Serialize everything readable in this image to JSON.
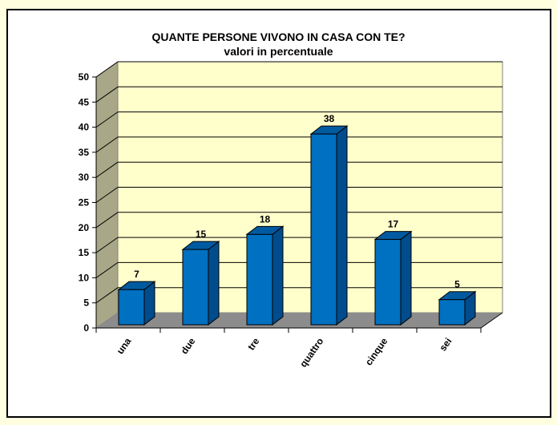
{
  "title": "QUANTE PERSONE VIVONO IN CASA CON TE?",
  "subtitle": "valori in percentuale",
  "colors": {
    "page_background": "#FFFFE0",
    "panel_background": "#FFFFFF",
    "back_wall": "#FFFFCC",
    "side_wall": "#A8A888",
    "floor": "#8C8C8C",
    "bar_front": "#0070C0",
    "bar_side": "#004C8C",
    "bar_top": "#005AA0"
  },
  "chart_data": {
    "type": "bar",
    "style": "3d-column",
    "title": "QUANTE PERSONE VIVONO IN CASA CON TE?",
    "subtitle": "valori in percentuale",
    "xlabel": "",
    "ylabel": "",
    "categories": [
      "una",
      "due",
      "tre",
      "quattro",
      "cinque",
      "sei"
    ],
    "values": [
      7,
      15,
      18,
      38,
      17,
      5
    ],
    "data_labels": [
      "7",
      "15",
      "18",
      "38",
      "17",
      "5"
    ],
    "ylim": [
      0,
      50
    ],
    "yticks": [
      0,
      5,
      10,
      15,
      20,
      25,
      30,
      35,
      40,
      45,
      50
    ],
    "grid": true,
    "legend": "none"
  },
  "axis": {
    "ytick_labels": [
      "0",
      "5",
      "10",
      "15",
      "20",
      "25",
      "30",
      "35",
      "40",
      "45",
      "50"
    ]
  }
}
